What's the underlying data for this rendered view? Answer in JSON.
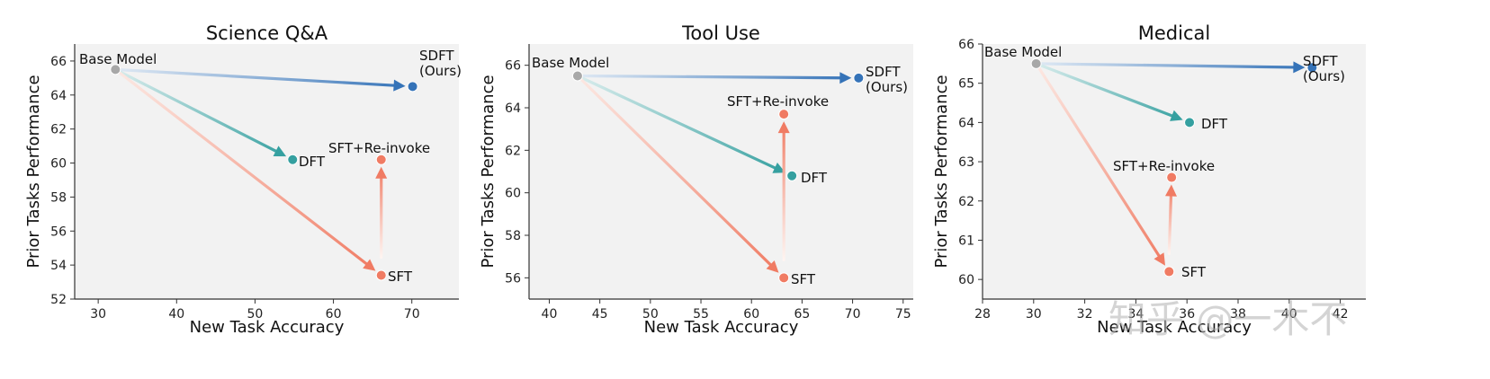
{
  "watermark": "知乎 @一木不",
  "colors": {
    "base": "#a8a8a8",
    "sdft": "#3573b8",
    "dft": "#35a0a0",
    "sft": "#f07b63",
    "reinvoke": "#f07b63",
    "sdft_fade": "#dde8f4",
    "dft_fade": "#d6ecec",
    "sft_fade": "#fde8e2"
  },
  "chart_data": [
    {
      "type": "scatter",
      "title": "Science Q&A",
      "xlabel": "New Task Accuracy",
      "ylabel": "Prior Tasks Performance",
      "xlim": [
        27,
        76
      ],
      "ylim": [
        52,
        67
      ],
      "xticks": [
        30,
        40,
        50,
        60,
        70
      ],
      "yticks": [
        52,
        54,
        56,
        58,
        60,
        62,
        64,
        66
      ],
      "grid": false,
      "points": [
        {
          "id": "base",
          "label": "Base Model",
          "x": 32.2,
          "y": 65.5
        },
        {
          "id": "sdft",
          "label": "SDFT",
          "label2": "(Ours)",
          "x": 70.1,
          "y": 64.5
        },
        {
          "id": "dft",
          "label": "DFT",
          "x": 54.8,
          "y": 60.2
        },
        {
          "id": "sft",
          "label": "SFT",
          "x": 66.1,
          "y": 53.4
        },
        {
          "id": "reinvoke",
          "label": "SFT+Re-invoke",
          "x": 66.1,
          "y": 60.2
        }
      ]
    },
    {
      "type": "scatter",
      "title": "Tool Use",
      "xlabel": "New Task Accuracy",
      "ylabel": "Prior Tasks Performance",
      "xlim": [
        38,
        76
      ],
      "ylim": [
        55,
        67
      ],
      "xticks": [
        40,
        45,
        50,
        55,
        60,
        65,
        70,
        75
      ],
      "yticks": [
        56,
        58,
        60,
        62,
        64,
        66
      ],
      "grid": false,
      "points": [
        {
          "id": "base",
          "label": "Base Model",
          "x": 42.8,
          "y": 65.5
        },
        {
          "id": "sdft",
          "label": "SDFT",
          "label2": "(Ours)",
          "x": 70.6,
          "y": 65.4
        },
        {
          "id": "dft",
          "label": "DFT",
          "x": 64.0,
          "y": 60.8
        },
        {
          "id": "sft",
          "label": "SFT",
          "x": 63.2,
          "y": 56.0
        },
        {
          "id": "reinvoke",
          "label": "SFT+Re-invoke",
          "x": 63.2,
          "y": 63.7
        }
      ]
    },
    {
      "type": "scatter",
      "title": "Medical",
      "xlabel": "New Task Accuracy",
      "ylabel": "Prior Tasks Performance",
      "xlim": [
        28,
        43
      ],
      "ylim": [
        59.5,
        66
      ],
      "xticks": [
        28,
        30,
        32,
        34,
        36,
        38,
        40,
        42
      ],
      "yticks": [
        60,
        61,
        62,
        63,
        64,
        65,
        66
      ],
      "grid": false,
      "points": [
        {
          "id": "base",
          "label": "Base Model",
          "x": 30.1,
          "y": 65.5
        },
        {
          "id": "sdft",
          "label": "SDFT",
          "label2": "(Ours)",
          "x": 40.9,
          "y": 65.4
        },
        {
          "id": "dft",
          "label": "DFT",
          "x": 36.1,
          "y": 64.0
        },
        {
          "id": "sft",
          "label": "SFT",
          "x": 35.3,
          "y": 60.2
        },
        {
          "id": "reinvoke",
          "label": "SFT+Re-invoke",
          "x": 35.4,
          "y": 62.6
        }
      ]
    }
  ]
}
